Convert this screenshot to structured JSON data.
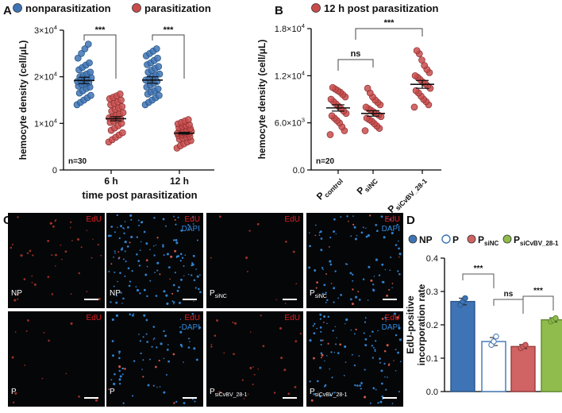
{
  "panel_letters": {
    "a": "A",
    "b": "B",
    "c": "C",
    "d": "D"
  },
  "colors": {
    "np": "#3e74b5",
    "p": "#c94c4c",
    "p_open": "#ffffff",
    "sinc": "#d06363",
    "sicvbv": "#8fbc4c",
    "edu_label": "#e02020",
    "dapi_label": "#2f8be0",
    "micro_bg": "#050608"
  },
  "chart_data": [
    {
      "panel": "A",
      "type": "scatter",
      "legend": [
        {
          "name": "nonparasitization",
          "color": "#3e74b5"
        },
        {
          "name": "parasitization",
          "color": "#c94c4c"
        }
      ],
      "ylabel": "hemocyte density (cell/μL)",
      "xlabel": "time post parasitization",
      "categories": [
        "6 h",
        "12 h"
      ],
      "ylim": [
        0,
        30000
      ],
      "yticks": [
        {
          "value": 0,
          "mantissa": "0",
          "exp": ""
        },
        {
          "value": 10000,
          "mantissa": "1×10",
          "exp": "4"
        },
        {
          "value": 20000,
          "mantissa": "2×10",
          "exp": "4"
        },
        {
          "value": 30000,
          "mantissa": "3×10",
          "exp": "4"
        }
      ],
      "n_label": "n=30",
      "series": [
        {
          "name": "nonparasitization",
          "group": "6 h",
          "mean": 19200,
          "sem": 700,
          "values": [
            14000,
            14500,
            15000,
            15500,
            16000,
            16500,
            17000,
            17500,
            17800,
            18000,
            18300,
            18500,
            18800,
            19000,
            19200,
            19400,
            19600,
            19800,
            20000,
            20300,
            20600,
            21000,
            21500,
            22000,
            22500,
            23000,
            24000,
            25000,
            26000,
            27000
          ]
        },
        {
          "name": "parasitization",
          "group": "6 h",
          "mean": 11000,
          "sem": 450,
          "values": [
            6000,
            6500,
            7000,
            7500,
            8000,
            8500,
            9000,
            9500,
            10000,
            10200,
            10500,
            10800,
            11000,
            11200,
            11500,
            11800,
            12000,
            12300,
            12600,
            13000,
            13300,
            13600,
            14000,
            14300,
            14600,
            15000,
            15300,
            15600,
            15900,
            16300
          ]
        },
        {
          "name": "nonparasitization",
          "group": "12 h",
          "mean": 19300,
          "sem": 700,
          "values": [
            14000,
            14500,
            15000,
            15500,
            16000,
            16300,
            16700,
            17000,
            17400,
            17800,
            18200,
            18600,
            19000,
            19300,
            19600,
            20000,
            20300,
            20600,
            21000,
            21400,
            21800,
            22200,
            22600,
            23000,
            23500,
            24000,
            24500,
            25000,
            25500,
            26000
          ]
        },
        {
          "name": "parasitization",
          "group": "12 h",
          "mean": 7900,
          "sem": 200,
          "values": [
            4700,
            5200,
            5600,
            6000,
            6300,
            6600,
            6800,
            7000,
            7200,
            7400,
            7600,
            7700,
            7800,
            7900,
            8000,
            8100,
            8200,
            8300,
            8400,
            8500,
            8700,
            8900,
            9100,
            9300,
            9500,
            9700,
            9900,
            10200,
            10500,
            10800
          ]
        }
      ],
      "comparisons": [
        {
          "label": "***",
          "group": "6 h"
        },
        {
          "label": "***",
          "group": "12 h"
        }
      ]
    },
    {
      "panel": "B",
      "type": "scatter",
      "legend": [
        {
          "name": "12 h post parasitization",
          "color": "#c94c4c"
        }
      ],
      "ylabel": "hemocyte density (cell/μL)",
      "categories": [
        {
          "main": "P",
          "sub": "control"
        },
        {
          "main": "P",
          "sub": "siNC"
        },
        {
          "main": "P",
          "sub": "siCvBV_28-1"
        }
      ],
      "ylim": [
        0,
        18000
      ],
      "yticks": [
        {
          "value": 0,
          "mantissa": "0.0",
          "exp": ""
        },
        {
          "value": 6000,
          "mantissa": "6.0×10",
          "exp": "3"
        },
        {
          "value": 12000,
          "mantissa": "1.2×10",
          "exp": "4"
        },
        {
          "value": 18000,
          "mantissa": "1.8×10",
          "exp": "4"
        }
      ],
      "n_label": "n=20",
      "series": [
        {
          "group": "P control",
          "mean": 7900,
          "sem": 400,
          "values": [
            4500,
            5000,
            5500,
            6000,
            6300,
            6600,
            6900,
            7200,
            7500,
            7800,
            8100,
            8400,
            8700,
            9000,
            9300,
            9600,
            9900,
            10100,
            10300,
            10500
          ]
        },
        {
          "group": "P siNC",
          "mean": 7200,
          "sem": 350,
          "values": [
            5000,
            5300,
            5600,
            5900,
            6200,
            6400,
            6600,
            6800,
            7000,
            7200,
            7400,
            7600,
            7800,
            8000,
            8300,
            8600,
            8900,
            9300,
            9800,
            10400
          ]
        },
        {
          "group": "P siCvBV_28-1",
          "mean": 10900,
          "sem": 500,
          "values": [
            8000,
            8300,
            8700,
            9000,
            9400,
            9800,
            10100,
            10400,
            10700,
            11000,
            11200,
            11500,
            11800,
            12000,
            12400,
            12800,
            13300,
            14000,
            14800,
            15200
          ]
        }
      ],
      "comparisons": [
        {
          "label": "ns",
          "from": 0,
          "to": 1
        },
        {
          "label": "***",
          "from": 1,
          "to": 2
        }
      ]
    },
    {
      "panel": "D",
      "type": "bar",
      "legend": [
        {
          "name": "NP",
          "sub": "",
          "color": "#3e74b5",
          "open": false
        },
        {
          "name": "P",
          "sub": "",
          "color": "#3e74b5",
          "open": true
        },
        {
          "name": "P",
          "sub": "siNC",
          "color": "#d06363",
          "open": false
        },
        {
          "name": "P",
          "sub": "siCvBV_28-1",
          "color": "#8fbc4c",
          "open": false
        }
      ],
      "ylabel_line1": "EdU-positive",
      "ylabel_line2": "incorporation rate",
      "ylim": [
        0,
        0.4
      ],
      "yticks": [
        {
          "value": 0,
          "label": "0.0"
        },
        {
          "value": 0.1,
          "label": "0.1"
        },
        {
          "value": 0.2,
          "label": "0.2"
        },
        {
          "value": 0.3,
          "label": "0.3"
        },
        {
          "value": 0.4,
          "label": "0.4"
        }
      ],
      "bars": [
        {
          "name": "NP",
          "value": 0.27,
          "err": 0.01,
          "points": [
            0.26,
            0.27,
            0.28
          ]
        },
        {
          "name": "P",
          "value": 0.15,
          "err": 0.012,
          "points": [
            0.14,
            0.15,
            0.165
          ]
        },
        {
          "name": "PsiNC",
          "value": 0.135,
          "err": 0.006,
          "points": [
            0.13,
            0.135,
            0.14
          ]
        },
        {
          "name": "PsiCvBV_28-1",
          "value": 0.215,
          "err": 0.006,
          "points": [
            0.21,
            0.215,
            0.22
          ]
        }
      ],
      "comparisons": [
        {
          "label": "***",
          "from": 0,
          "to": 1
        },
        {
          "label": "ns",
          "from": 1,
          "to": 2
        },
        {
          "label": "***",
          "from": 2,
          "to": 3
        }
      ]
    }
  ],
  "micrographs": [
    {
      "edu": "EdU",
      "dapi": "",
      "label_main": "NP",
      "label_sub": "",
      "density": 0.3,
      "blue": false
    },
    {
      "edu": "EdU",
      "dapi": "DAPI",
      "label_main": "NP",
      "label_sub": "",
      "density": 1.0,
      "blue": true
    },
    {
      "edu": "EdU",
      "dapi": "",
      "label_main": "P",
      "label_sub": "siNC",
      "density": 0.08,
      "blue": false
    },
    {
      "edu": "EdU",
      "dapi": "DAPI",
      "label_main": "P",
      "label_sub": "siNC",
      "density": 0.7,
      "blue": true
    },
    {
      "edu": "EdU",
      "dapi": "",
      "label_main": "P",
      "label_sub": "",
      "density": 0.1,
      "blue": false
    },
    {
      "edu": "EdU",
      "dapi": "DAPI",
      "label_main": "P",
      "label_sub": "",
      "density": 0.55,
      "blue": true
    },
    {
      "edu": "EdU",
      "dapi": "",
      "label_main": "P",
      "label_sub": "siCvBV_28-1",
      "density": 0.2,
      "blue": false
    },
    {
      "edu": "EdU",
      "dapi": "DAPI",
      "label_main": "P",
      "label_sub": "siCvBV_28-1",
      "density": 0.8,
      "blue": true
    }
  ]
}
